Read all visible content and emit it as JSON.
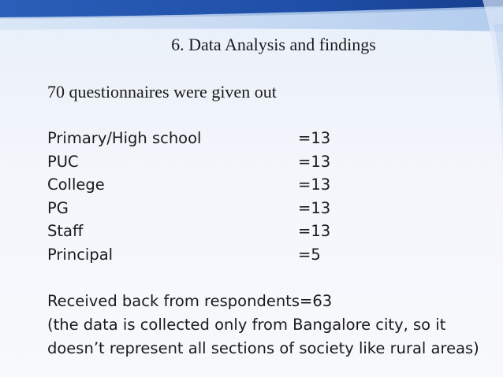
{
  "slide": {
    "title": "6. Data Analysis and findings",
    "intro": "70 questionnaires were given out",
    "rows": [
      {
        "label": "Primary/High school",
        "value": "=13"
      },
      {
        "label": "PUC",
        "value": "=13"
      },
      {
        "label": "College",
        "value": "=13"
      },
      {
        "label": "PG",
        "value": "=13"
      },
      {
        "label": "Staff",
        "value": "=13"
      },
      {
        "label": "Principal",
        "value": "=5"
      }
    ],
    "received": "Received back from respondents=63",
    "note_line1": "(the data is collected only from Bangalore city, so it",
    "note_line2": "doesn’t represent all sections of society like rural areas)"
  },
  "colors": {
    "background_top": "#e9f0fa",
    "background_bottom": "#f7f9fc",
    "wave_dark": "#1f4fa8",
    "wave_light": "#9fc0ea",
    "text": "#1a1a1a"
  }
}
